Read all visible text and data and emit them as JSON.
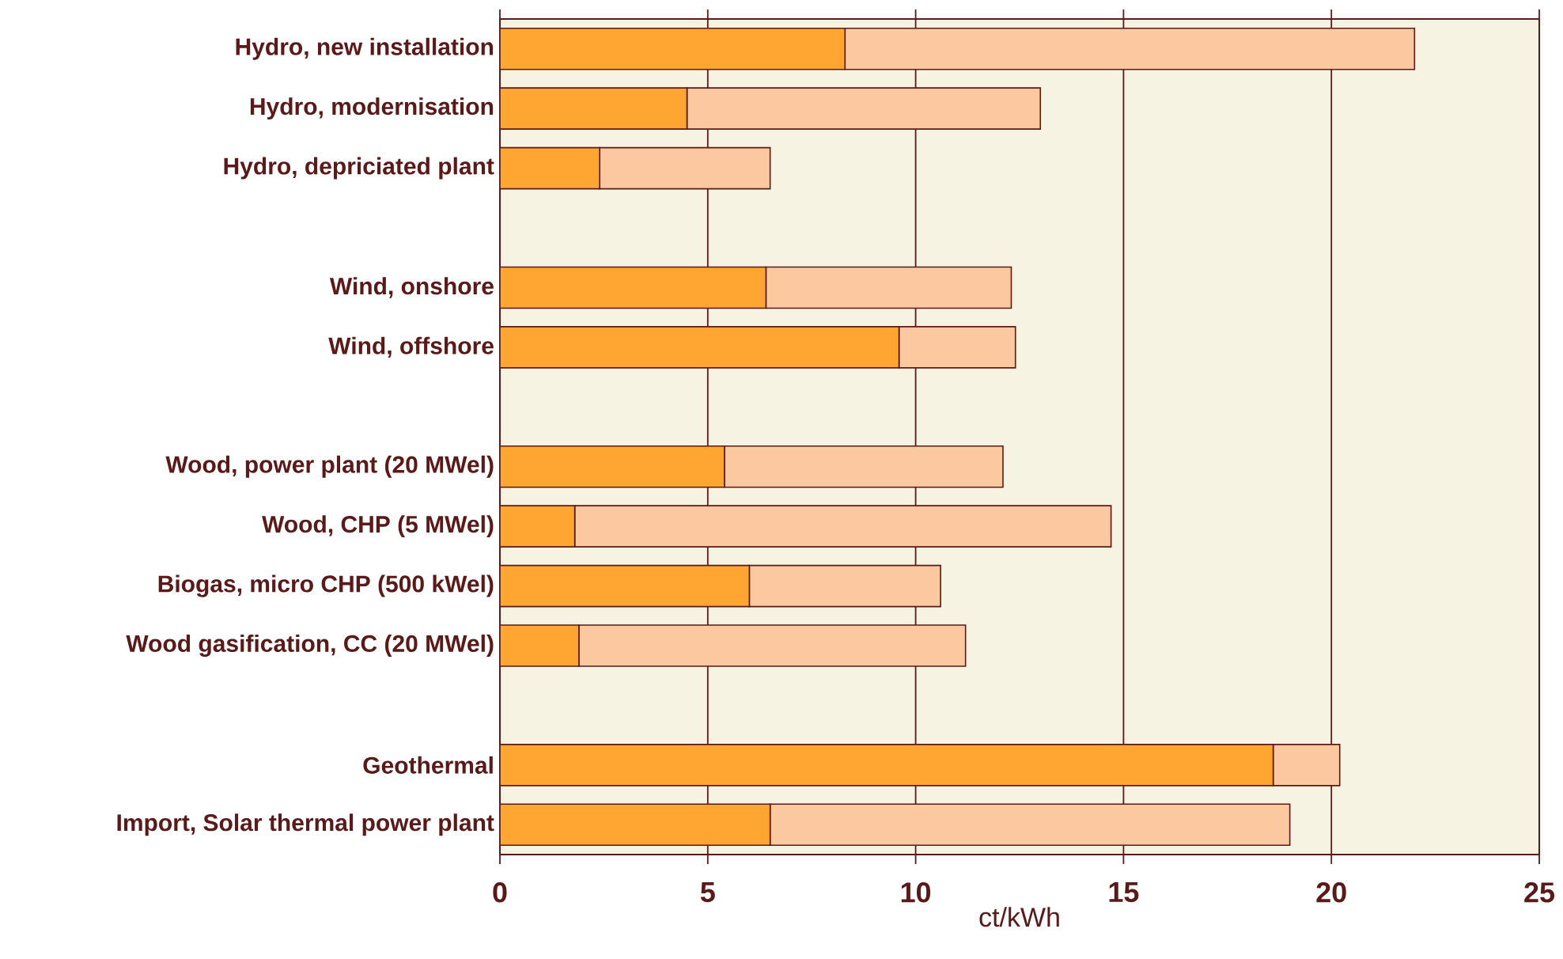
{
  "chart_data": {
    "type": "bar",
    "orientation": "horizontal",
    "stacked": true,
    "xlabel": "ct/kWh",
    "categories": [
      "Hydro, new installation",
      "Hydro, modernisation",
      "Hydro, depriciated plant",
      null,
      "Wind, onshore",
      "Wind, offshore",
      null,
      "Wood, power plant (20 MWel)",
      "Wood, CHP (5 MWel)",
      "Biogas, micro CHP (500 kWel)",
      "Wood gasification, CC (20 MWel)",
      null,
      "Geothermal",
      "Import, Solar thermal power plant"
    ],
    "series": [
      {
        "color": "#ffa531",
        "values": [
          8.3,
          4.5,
          2.4,
          null,
          6.4,
          9.6,
          null,
          5.4,
          1.8,
          6.0,
          1.9,
          null,
          18.6,
          6.5
        ]
      },
      {
        "color": "#fbc8a0",
        "values": [
          13.7,
          8.5,
          4.1,
          null,
          5.9,
          2.8,
          null,
          6.7,
          12.9,
          4.6,
          9.3,
          null,
          1.6,
          12.5
        ]
      }
    ],
    "xlim": [
      0,
      25
    ],
    "xticks": [
      0,
      5,
      10,
      15,
      20,
      25
    ],
    "grid": "x"
  }
}
